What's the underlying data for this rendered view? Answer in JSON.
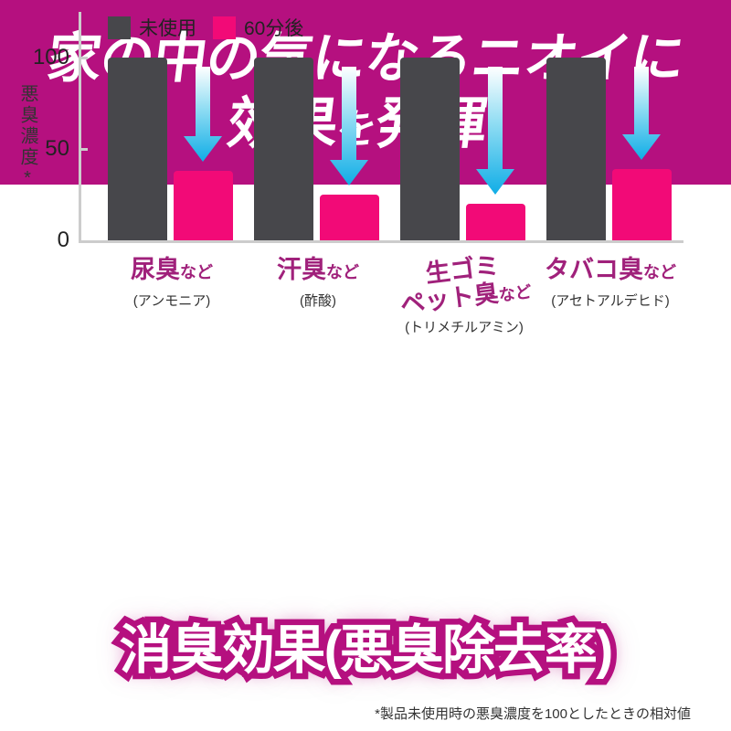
{
  "header": {
    "line1": "家の中の気になるニオイに",
    "line2_prefix": "効果",
    "line2_particle": "を",
    "line2_suffix": "発揮!",
    "bg_color": "#b5107f"
  },
  "chart_data": {
    "type": "bar",
    "title": "消臭効果(悪臭除去率)",
    "ylabel": "悪臭濃度*",
    "ylim": [
      0,
      100
    ],
    "yticks": [
      0,
      50,
      100
    ],
    "grid": false,
    "legend_position": "top",
    "categories": [
      {
        "label": "尿臭",
        "suffix": "など",
        "chemical": "(アンモニア)",
        "tilt": false
      },
      {
        "label": "汗臭",
        "suffix": "など",
        "chemical": "(酢酸)",
        "tilt": false
      },
      {
        "label": "生ゴミ\nペット臭",
        "suffix": "など",
        "chemical": "(トリメチルアミン)",
        "tilt": true
      },
      {
        "label": "タバコ臭",
        "suffix": "など",
        "chemical": "(アセトアルデヒド)",
        "tilt": false
      }
    ],
    "series": [
      {
        "name": "未使用",
        "color": "#47474b",
        "values": [
          100,
          100,
          100,
          100
        ]
      },
      {
        "name": "60分後",
        "color": "#f20a77",
        "values": [
          38,
          25,
          20,
          39
        ]
      }
    ],
    "arrow_color": "#10ade6"
  },
  "footer": {
    "title": "消臭効果(悪臭除去率)",
    "glow_color": "#b5107f"
  },
  "footnote": "*製品未使用時の悪臭濃度を100としたときの相対値",
  "colors": {
    "category_label": "#a0217b",
    "axis": "#cccccc",
    "banner": "#b5107f"
  }
}
